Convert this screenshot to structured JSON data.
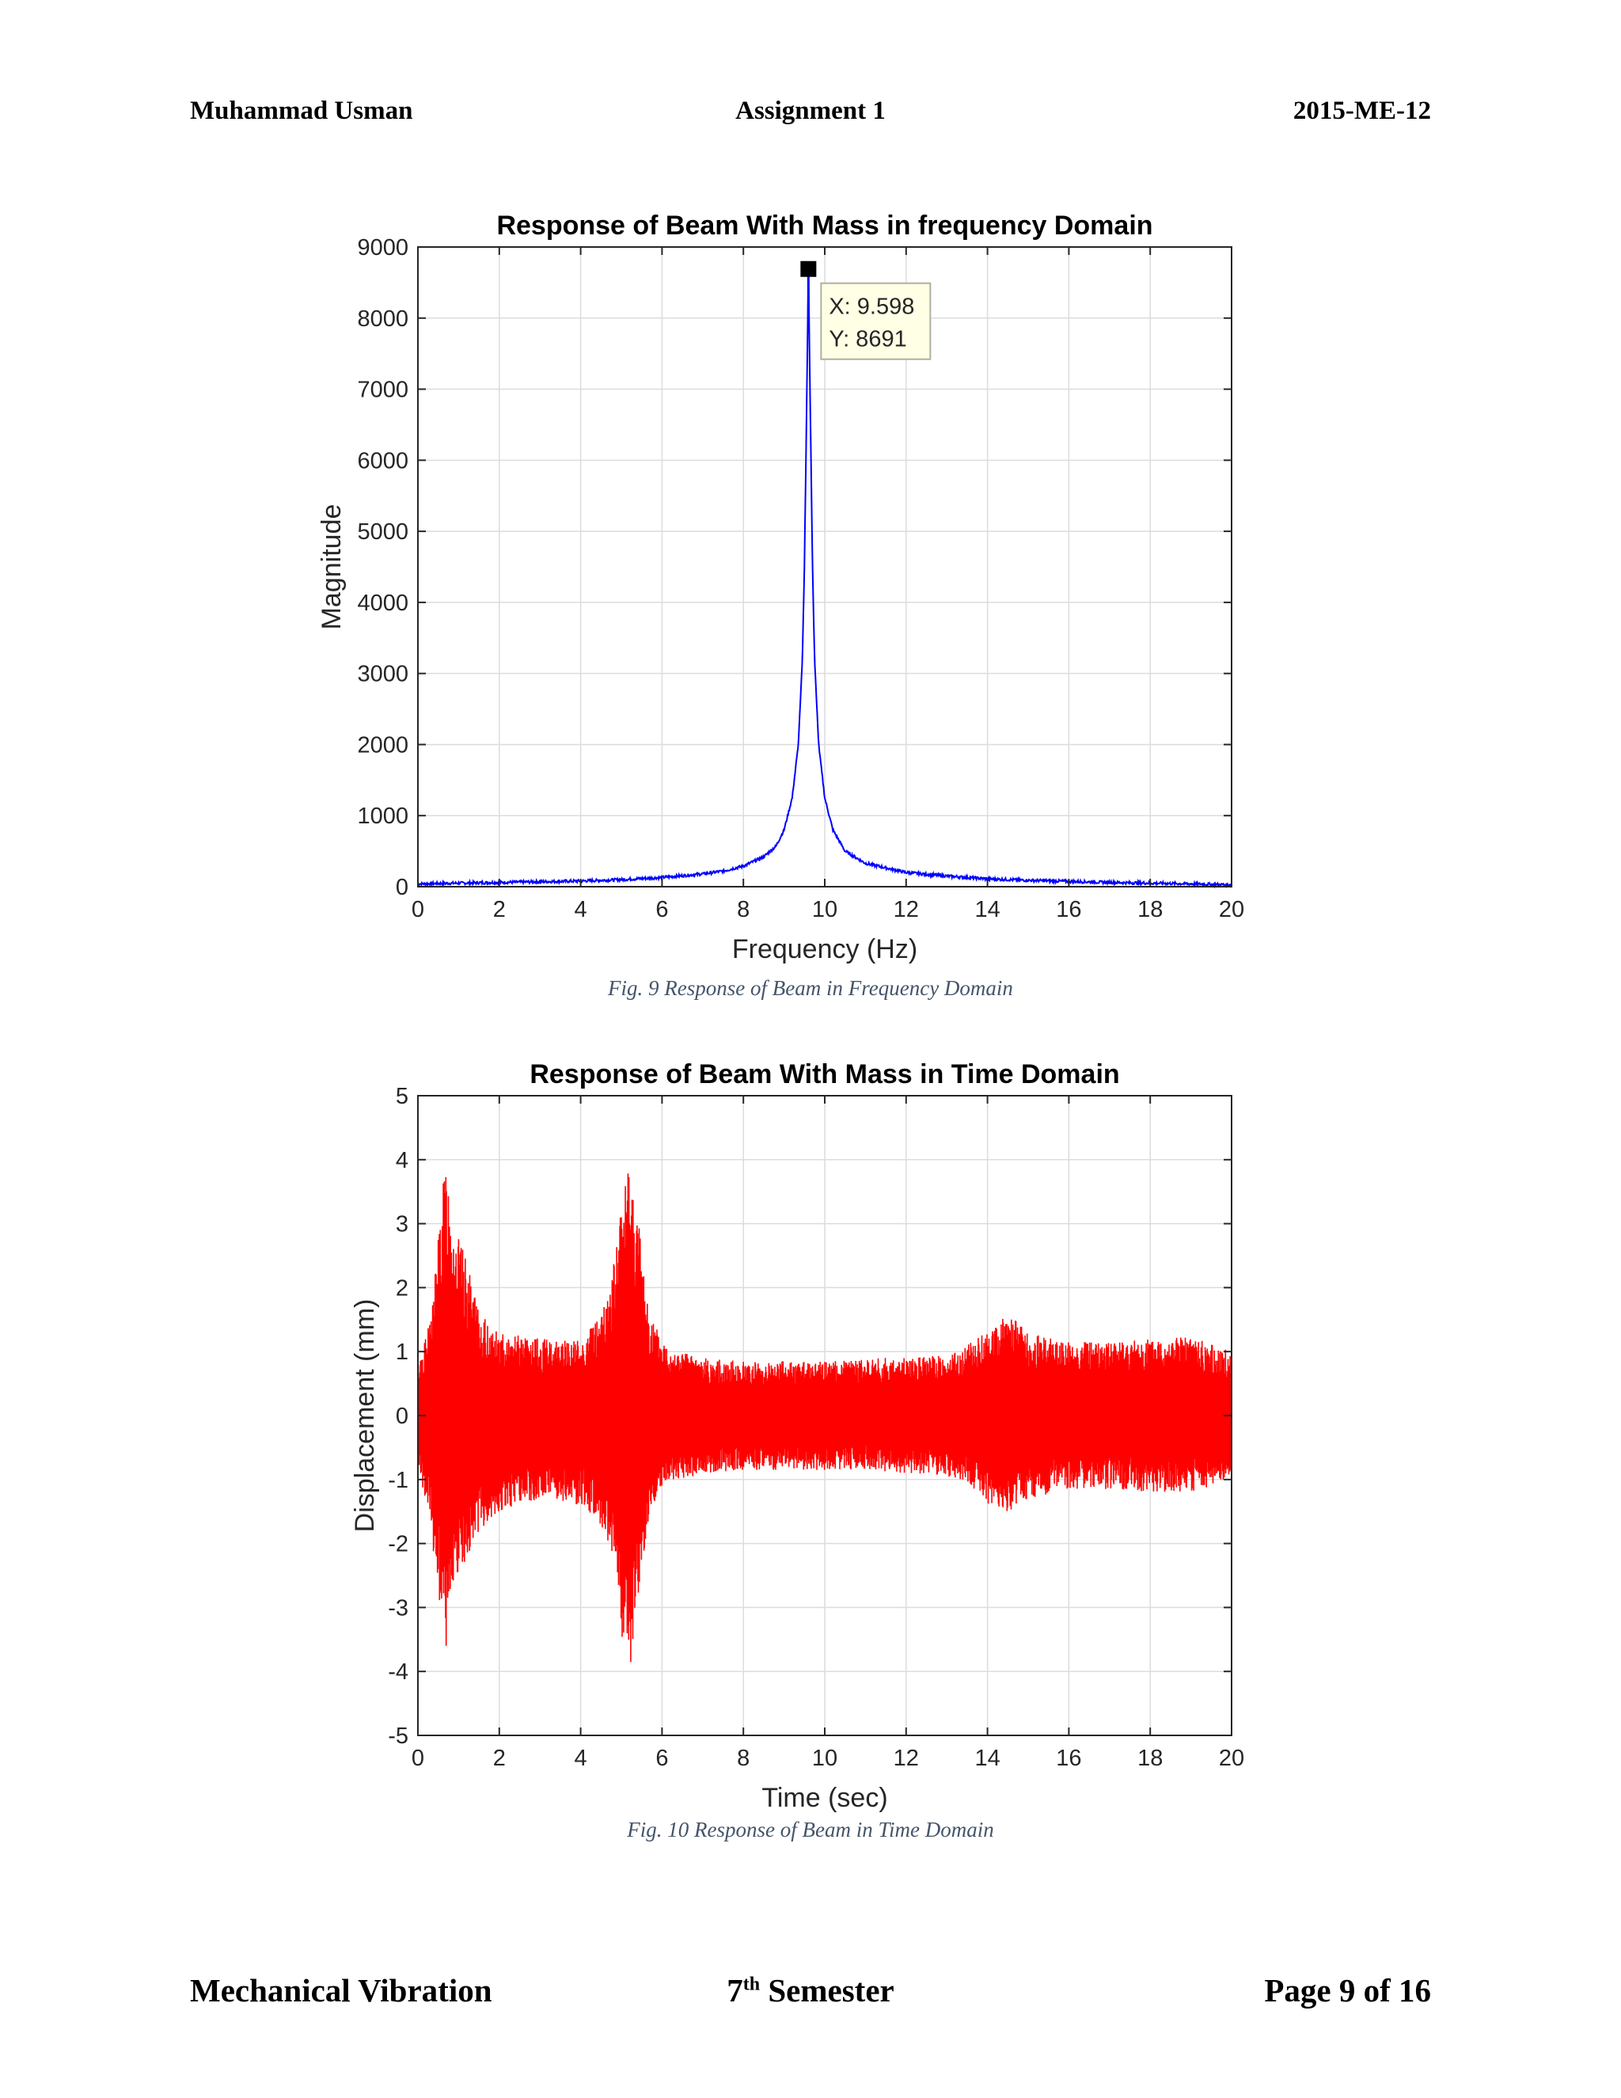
{
  "header": {
    "left": "Muhammad Usman",
    "center": "Assignment 1",
    "right": "2015-ME-12"
  },
  "footer": {
    "left": "Mechanical Vibration",
    "center_num": "7",
    "center_sup": "th",
    "center_rest": " Semester",
    "right": "Page 9 of 16"
  },
  "figures": [
    {
      "caption": "Fig.  9 Response of Beam in Frequency Domain"
    },
    {
      "caption": "Fig.  10 Response of Beam in Time Domain"
    }
  ],
  "chart_data": [
    {
      "type": "line",
      "title": "Response of Beam With Mass in frequency Domain",
      "xlabel": "Frequency (Hz)",
      "ylabel": "Magnitude",
      "xlim": [
        0,
        20
      ],
      "ylim": [
        0,
        9000
      ],
      "xticks": [
        0,
        2,
        4,
        6,
        8,
        10,
        12,
        14,
        16,
        18,
        20
      ],
      "yticks": [
        0,
        1000,
        2000,
        3000,
        4000,
        5000,
        6000,
        7000,
        8000,
        9000
      ],
      "grid": true,
      "color": "#0000ff",
      "x": [
        0,
        1,
        2,
        3,
        4,
        5,
        6,
        7,
        7.5,
        8,
        8.5,
        8.8,
        9.0,
        9.2,
        9.35,
        9.45,
        9.5,
        9.55,
        9.598,
        9.65,
        9.7,
        9.75,
        9.85,
        10.0,
        10.2,
        10.5,
        11,
        12,
        13,
        14,
        15,
        16,
        17,
        18,
        19,
        20
      ],
      "y": [
        40,
        50,
        60,
        70,
        80,
        100,
        130,
        180,
        220,
        290,
        420,
        570,
        800,
        1250,
        2000,
        3200,
        4500,
        6500,
        8691,
        6500,
        4500,
        3200,
        2000,
        1250,
        800,
        500,
        330,
        200,
        150,
        110,
        90,
        75,
        60,
        50,
        40,
        25
      ],
      "datatip": {
        "x_label": "X: 9.598",
        "y_label": "Y: 8691",
        "x": 9.598,
        "y": 8691
      }
    },
    {
      "type": "line",
      "title": "Response of Beam With Mass in Time Domain",
      "xlabel": "Time (sec)",
      "ylabel": "Displacement (mm)",
      "xlim": [
        0,
        20
      ],
      "ylim": [
        -5,
        5
      ],
      "xticks": [
        0,
        2,
        4,
        6,
        8,
        10,
        12,
        14,
        16,
        18,
        20
      ],
      "yticks": [
        -5,
        -4,
        -3,
        -2,
        -1,
        0,
        1,
        2,
        3,
        4,
        5
      ],
      "grid": true,
      "color": "#ff0000",
      "envelope_t": [
        0,
        0.3,
        0.6,
        0.7,
        0.9,
        1.2,
        1.5,
        2.0,
        3.0,
        4.0,
        4.5,
        4.8,
        5.0,
        5.2,
        5.4,
        5.7,
        6.0,
        6.5,
        7,
        8,
        9,
        10,
        11,
        12,
        13,
        13.5,
        14,
        14.5,
        15,
        16,
        17,
        18,
        19,
        20
      ],
      "envelope_upper": [
        0.8,
        1.5,
        3.5,
        4.1,
        3.0,
        2.4,
        1.6,
        1.3,
        1.2,
        1.2,
        1.6,
        2.3,
        3.4,
        4.1,
        3.2,
        1.6,
        1.2,
        1.0,
        0.9,
        0.85,
        0.85,
        0.85,
        0.9,
        0.9,
        0.95,
        1.1,
        1.35,
        1.65,
        1.3,
        1.15,
        1.15,
        1.2,
        1.25,
        1.0
      ],
      "envelope_lower": [
        -0.7,
        -1.8,
        -3.3,
        -3.7,
        -2.8,
        -2.3,
        -1.8,
        -1.5,
        -1.3,
        -1.4,
        -1.7,
        -2.3,
        -3.4,
        -4.2,
        -3.0,
        -1.5,
        -1.1,
        -1.0,
        -0.9,
        -0.85,
        -0.85,
        -0.85,
        -0.85,
        -0.9,
        -0.95,
        -1.05,
        -1.4,
        -1.5,
        -1.3,
        -1.15,
        -1.15,
        -1.2,
        -1.2,
        -1.0
      ]
    }
  ]
}
